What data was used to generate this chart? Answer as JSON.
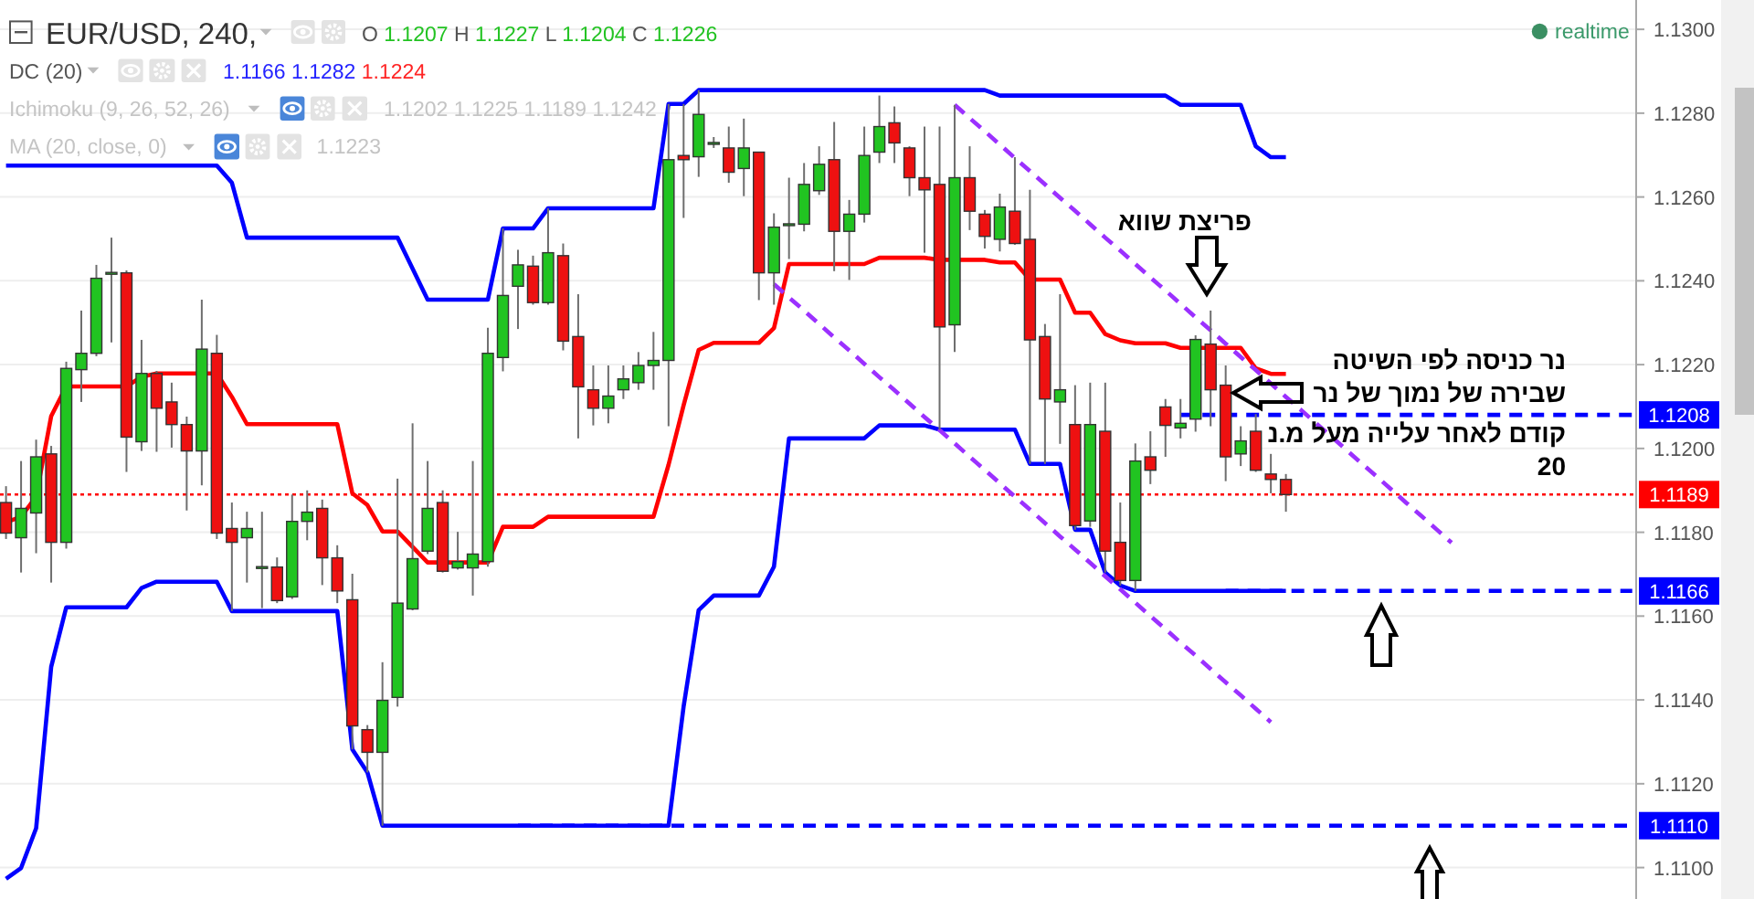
{
  "chart_data": {
    "type": "candlestick",
    "title": "EUR/USD, 240,",
    "annotations": [
      "O 1.1207 H 1.1227 L 1.1204 C 1.1226",
      "DC (20)",
      "1.1166 1.1282 1.1224",
      "Ichimoku (9, 26, 52, 26)",
      "1.1202 1.1225 1.1189 1.1242",
      "MA (20, close, 0)",
      "1.1223",
      "realtime",
      "פריצת שווא",
      "נר כניסה לפי השיטה\nשבירה של נמוך של נר\nקודם לאחר עלייה מעל מ.נ\n20"
    ],
    "categories": [
      null,
      null,
      null,
      null,
      null,
      null,
      null,
      null,
      null,
      null,
      null,
      null,
      null,
      null,
      null,
      null,
      null,
      null,
      null,
      null,
      null,
      null,
      null,
      null,
      null,
      null,
      null,
      null,
      null,
      null,
      null,
      null,
      null,
      null,
      null,
      null,
      null,
      null,
      null,
      null,
      null,
      null,
      null,
      null,
      null,
      null,
      null,
      null,
      null,
      null,
      null,
      null,
      null,
      null,
      null,
      null,
      null,
      null,
      null,
      null,
      null,
      null,
      null,
      null,
      null,
      null,
      null,
      null,
      null,
      null,
      null,
      null,
      null,
      null,
      null,
      null,
      null,
      null,
      null,
      null,
      null,
      null,
      null,
      null,
      null,
      null,
      null,
      null,
      null,
      null,
      null,
      null,
      null,
      null,
      null,
      null,
      null,
      null,
      null,
      null,
      null,
      null,
      null,
      null,
      null,
      null,
      null,
      null,
      null
    ],
    "ohlc": [
      [
        1.11871,
        1.1191,
        1.11784,
        1.11798
      ],
      [
        1.11787,
        1.1197,
        1.11704,
        1.11857
      ],
      [
        1.11846,
        1.12021,
        1.1175,
        1.1198
      ],
      [
        1.11987,
        1.12006,
        1.1168,
        1.11776
      ],
      [
        1.11776,
        1.12207,
        1.11761,
        1.12191
      ],
      [
        1.12188,
        1.12329,
        1.12111,
        1.12227
      ],
      [
        1.12227,
        1.12438,
        1.1222,
        1.12406
      ],
      [
        1.12418,
        1.12503,
        1.12253,
        1.1242
      ],
      [
        1.12419,
        1.12425,
        1.11944,
        1.12027
      ],
      [
        1.12016,
        1.12259,
        1.11994,
        1.12179
      ],
      [
        1.12179,
        1.12185,
        1.11992,
        1.12096
      ],
      [
        1.12111,
        1.12157,
        1.12002,
        1.12057
      ],
      [
        1.12057,
        1.12076,
        1.11852,
        1.11994
      ],
      [
        1.11994,
        1.12355,
        1.11912,
        1.12237
      ],
      [
        1.12227,
        1.12271,
        1.11784,
        1.11798
      ],
      [
        1.11809,
        1.11871,
        1.11612,
        1.11776
      ],
      [
        1.11787,
        1.11849,
        1.1168,
        1.11809
      ],
      [
        1.11716,
        1.11849,
        1.11619,
        1.11718
      ],
      [
        1.11717,
        1.1174,
        1.11631,
        1.11637
      ],
      [
        1.11646,
        1.1189,
        1.11641,
        1.11826
      ],
      [
        1.11826,
        1.119,
        1.11781,
        1.11848
      ],
      [
        1.11857,
        1.11878,
        1.11674,
        1.11739
      ],
      [
        1.11739,
        1.11769,
        1.11631,
        1.1166
      ],
      [
        1.11639,
        1.11701,
        1.11282,
        1.11338
      ],
      [
        1.11329,
        1.1134,
        1.11227,
        1.11275
      ],
      [
        1.11275,
        1.1149,
        1.111,
        1.11399
      ],
      [
        1.11406,
        1.11928,
        1.11384,
        1.11631
      ],
      [
        1.11617,
        1.1206,
        1.11614,
        1.11737
      ],
      [
        1.11755,
        1.1197,
        1.11748,
        1.11857
      ],
      [
        1.11871,
        1.119,
        1.11704,
        1.11707
      ],
      [
        1.11715,
        1.11801,
        1.11711,
        1.1173
      ],
      [
        1.11715,
        1.1197,
        1.11649,
        1.11748
      ],
      [
        1.1173,
        1.12288,
        1.11718,
        1.12227
      ],
      [
        1.12217,
        1.12525,
        1.12184,
        1.12365
      ],
      [
        1.12387,
        1.12474,
        1.12285,
        1.12438
      ],
      [
        1.12435,
        1.1246,
        1.12343,
        1.12348
      ],
      [
        1.12348,
        1.12573,
        1.12343,
        1.12467
      ],
      [
        1.1246,
        1.12489,
        1.12234,
        1.12256
      ],
      [
        1.12267,
        1.12368,
        1.12024,
        1.12147
      ],
      [
        1.1214,
        1.12198,
        1.12055,
        1.12096
      ],
      [
        1.12096,
        1.12198,
        1.1206,
        1.12125
      ],
      [
        1.1214,
        1.12198,
        1.12118,
        1.12166
      ],
      [
        1.12157,
        1.1223,
        1.1214,
        1.12198
      ],
      [
        1.12198,
        1.12278,
        1.1214,
        1.1221
      ],
      [
        1.1221,
        1.12822,
        1.12053,
        1.12689
      ],
      [
        1.12699,
        1.12822,
        1.1255,
        1.12689
      ],
      [
        1.12696,
        1.12855,
        1.12648,
        1.12797
      ],
      [
        1.12727,
        1.12743,
        1.12717,
        1.1273
      ],
      [
        1.12717,
        1.12768,
        1.12634,
        1.12659
      ],
      [
        1.12668,
        1.12787,
        1.12602,
        1.12717
      ],
      [
        1.12707,
        1.12708,
        1.12354,
        1.12419
      ],
      [
        1.12419,
        1.12561,
        1.12343,
        1.12528
      ],
      [
        1.12534,
        1.12646,
        1.12452,
        1.12536
      ],
      [
        1.12535,
        1.12681,
        1.12518,
        1.1263
      ],
      [
        1.12615,
        1.12721,
        1.12605,
        1.12678
      ],
      [
        1.12689,
        1.12779,
        1.12423,
        1.12518
      ],
      [
        1.12518,
        1.12593,
        1.12402,
        1.12559
      ],
      [
        1.12559,
        1.12768,
        1.12539,
        1.12699
      ],
      [
        1.12707,
        1.12842,
        1.12681,
        1.12768
      ],
      [
        1.12777,
        1.12816,
        1.12681,
        1.12729
      ],
      [
        1.12717,
        1.12721,
        1.12602,
        1.12646
      ],
      [
        1.12646,
        1.12768,
        1.12467,
        1.12617
      ],
      [
        1.1263,
        1.12768,
        1.12045,
        1.1229
      ],
      [
        1.12295,
        1.1282,
        1.1223,
        1.12646
      ],
      [
        1.12646,
        1.12721,
        1.12521,
        1.12566
      ],
      [
        1.12559,
        1.12569,
        1.12477,
        1.12506
      ],
      [
        1.12499,
        1.12608,
        1.1247,
        1.12576
      ],
      [
        1.12566,
        1.12695,
        1.12486,
        1.12489
      ],
      [
        1.12499,
        1.12617,
        1.11963,
        1.12259
      ],
      [
        1.12267,
        1.12297,
        1.11963,
        1.12118
      ],
      [
        1.12111,
        1.12368,
        1.12011,
        1.1214
      ],
      [
        1.12057,
        1.12151,
        1.11806,
        1.11816
      ],
      [
        1.11827,
        1.12157,
        1.11813,
        1.12057
      ],
      [
        1.12041,
        1.12157,
        1.11704,
        1.11755
      ],
      [
        1.11776,
        1.11871,
        1.11673,
        1.11685
      ],
      [
        1.11685,
        1.12012,
        1.1166,
        1.1197
      ],
      [
        1.1198,
        1.12041,
        1.11915,
        1.11948
      ],
      [
        1.12099,
        1.12118,
        1.1198,
        1.12055
      ],
      [
        1.12049,
        1.12118,
        1.12024,
        1.1206
      ],
      [
        1.1207,
        1.1227,
        1.1204,
        1.1226
      ],
      [
        1.12249,
        1.12329,
        1.12053,
        1.1214
      ],
      [
        1.12151,
        1.12198,
        1.11922,
        1.1198
      ],
      [
        1.11987,
        1.12053,
        1.11958,
        1.12018
      ],
      [
        1.12041,
        1.12082,
        1.11944,
        1.11948
      ],
      [
        1.11939,
        1.11987,
        1.11893,
        1.11926
      ],
      [
        1.11926,
        1.11939,
        1.11849,
        1.1189
      ],
      null,
      null,
      null,
      null,
      null,
      null,
      null,
      null,
      null,
      null,
      null,
      null,
      null,
      null,
      null,
      null,
      null,
      null,
      null,
      null,
      null,
      null,
      null
    ],
    "colors": [
      "#ee1111",
      "#21c421",
      "#21c421",
      "#ee1111",
      "#21c421",
      "#21c421",
      "#21c421",
      "#21c421",
      "#ee1111",
      "#21c421",
      "#ee1111",
      "#ee1111",
      "#ee1111",
      "#21c421",
      "#ee1111",
      "#ee1111",
      "#21c421",
      "#21c421",
      "#ee1111",
      "#21c421",
      "#21c421",
      "#ee1111",
      "#ee1111",
      "#ee1111",
      "#ee1111",
      "#21c421",
      "#21c421",
      "#21c421",
      "#21c421",
      "#ee1111",
      "#21c421",
      "#21c421",
      "#21c421",
      "#21c421",
      "#21c421",
      "#ee1111",
      "#21c421",
      "#ee1111",
      "#ee1111",
      "#ee1111",
      "#21c421",
      "#21c421",
      "#21c421",
      "#21c421",
      "#21c421",
      "#ee1111",
      "#21c421",
      "#21c421",
      "#ee1111",
      "#21c421",
      "#ee1111",
      "#21c421",
      "#21c421",
      "#21c421",
      "#21c421",
      "#ee1111",
      "#21c421",
      "#21c421",
      "#21c421",
      "#ee1111",
      "#ee1111",
      "#ee1111",
      "#ee1111",
      "#21c421",
      "#ee1111",
      "#ee1111",
      "#21c421",
      "#ee1111",
      "#ee1111",
      "#ee1111",
      "#21c421",
      "#ee1111",
      "#21c421",
      "#ee1111",
      "#ee1111",
      "#21c421",
      "#ee1111",
      "#ee1111",
      "#21c421",
      "#21c421",
      "#ee1111",
      "#ee1111",
      "#21c421",
      "#ee1111",
      "#ee1111",
      "#ee1111",
      null,
      null,
      null,
      null,
      null,
      null,
      null,
      null,
      null,
      null,
      null,
      null,
      null,
      null,
      null,
      null,
      null,
      null,
      null,
      null,
      null,
      null,
      null
    ],
    "series": [
      {
        "type": "line",
        "color": "#0000ff",
        "values": [
          1.12675,
          1.12675,
          1.12675,
          1.12675,
          1.12675,
          1.12675,
          1.12675,
          1.12675,
          1.12675,
          1.12675,
          1.12675,
          1.12675,
          1.12675,
          1.12675,
          1.12675,
          1.12634,
          1.12503,
          1.12503,
          1.12503,
          1.12503,
          1.12503,
          1.12503,
          1.12503,
          1.12503,
          1.12503,
          1.12503,
          1.12503,
          1.12429,
          1.12355,
          1.12355,
          1.12355,
          1.12355,
          1.12355,
          1.12525,
          1.12525,
          1.12525,
          1.12573,
          1.12573,
          1.12573,
          1.12573,
          1.12573,
          1.12573,
          1.12573,
          1.12573,
          1.12822,
          1.12822,
          1.12855,
          1.12855,
          1.12855,
          1.12855,
          1.12855,
          1.12855,
          1.12855,
          1.12855,
          1.12855,
          1.12855,
          1.12855,
          1.12855,
          1.12855,
          1.12855,
          1.12855,
          1.12855,
          1.12855,
          1.12855,
          1.12855,
          1.12855,
          1.12842,
          1.12842,
          1.12842,
          1.12842,
          1.12842,
          1.12842,
          1.12842,
          1.12842,
          1.12842,
          1.12842,
          1.12842,
          1.12842,
          1.1282,
          1.1282,
          1.1282,
          1.1282,
          1.1282,
          1.12721,
          1.12695,
          1.12695,
          null,
          null,
          null,
          null,
          null,
          null,
          null,
          null,
          null,
          null,
          null,
          null,
          null,
          null,
          null,
          null,
          null,
          null,
          null,
          null,
          null,
          null,
          null
        ]
      },
      {
        "type": "line",
        "color": "#ff0000",
        "values": [
          1.11824,
          1.11837,
          1.11885,
          1.12077,
          1.12148,
          1.12148,
          1.12148,
          1.12148,
          1.12148,
          1.12171,
          1.12179,
          1.12179,
          1.12179,
          1.12179,
          1.12179,
          1.12123,
          1.12058,
          1.12058,
          1.12058,
          1.12058,
          1.12058,
          1.12058,
          1.12058,
          1.11893,
          1.11865,
          1.11802,
          1.11802,
          1.11765,
          1.11728,
          1.11728,
          1.11728,
          1.11728,
          1.11728,
          1.11813,
          1.11813,
          1.11813,
          1.11837,
          1.11837,
          1.11837,
          1.11837,
          1.11837,
          1.11837,
          1.11837,
          1.11837,
          1.11961,
          1.12103,
          1.12235,
          1.12252,
          1.12252,
          1.12252,
          1.12252,
          1.12287,
          1.1244,
          1.1244,
          1.1244,
          1.1244,
          1.1244,
          1.1244,
          1.12455,
          1.12455,
          1.12455,
          1.12455,
          1.1245,
          1.1245,
          1.1245,
          1.1245,
          1.12444,
          1.12444,
          1.12403,
          1.12403,
          1.12403,
          1.12324,
          1.12324,
          1.12273,
          1.12258,
          1.12251,
          1.12251,
          1.12251,
          1.1224,
          1.1224,
          1.1224,
          1.1224,
          1.1224,
          1.12191,
          1.12178,
          1.12178,
          null,
          null,
          null,
          null,
          null,
          null,
          null,
          null,
          null,
          null,
          null,
          null,
          null,
          null,
          null,
          null,
          null,
          null,
          null,
          null,
          null,
          null,
          null
        ]
      },
      {
        "type": "line",
        "color": "#0000ff",
        "values": [
          1.10973,
          1.10999,
          1.11094,
          1.11479,
          1.11621,
          1.11621,
          1.11621,
          1.11621,
          1.11621,
          1.11667,
          1.11682,
          1.11682,
          1.11682,
          1.11682,
          1.11682,
          1.11612,
          1.11612,
          1.11612,
          1.11612,
          1.11612,
          1.11612,
          1.11612,
          1.11612,
          1.11282,
          1.11227,
          1.111,
          1.111,
          1.111,
          1.111,
          1.111,
          1.111,
          1.111,
          1.111,
          1.111,
          1.111,
          1.111,
          1.111,
          1.111,
          1.111,
          1.111,
          1.111,
          1.111,
          1.111,
          1.111,
          1.111,
          1.11384,
          1.11614,
          1.11649,
          1.11649,
          1.11649,
          1.11649,
          1.11718,
          1.12024,
          1.12024,
          1.12024,
          1.12024,
          1.12024,
          1.12024,
          1.12055,
          1.12055,
          1.12055,
          1.12055,
          1.12045,
          1.12045,
          1.12045,
          1.12045,
          1.12045,
          1.12045,
          1.11963,
          1.11963,
          1.11963,
          1.11806,
          1.11806,
          1.11704,
          1.11673,
          1.1166,
          1.1166,
          1.1166,
          1.1166,
          1.1166,
          1.1166,
          1.1166,
          1.1166,
          1.1166,
          1.1166,
          1.1166,
          null,
          null,
          null,
          null,
          null,
          null,
          null,
          null,
          null,
          null,
          null,
          null,
          null,
          null,
          null,
          null,
          null,
          null,
          null,
          null,
          null,
          null,
          null
        ]
      },
      {
        "type": "line",
        "color": "#9b30ff",
        "line_style": "dashed",
        "values": [
          null,
          null,
          null,
          null,
          null,
          null,
          null,
          null,
          null,
          null,
          null,
          null,
          null,
          null,
          null,
          null,
          null,
          null,
          null,
          null,
          null,
          null,
          null,
          null,
          null,
          null,
          null,
          null,
          null,
          null,
          null,
          null,
          null,
          null,
          null,
          null,
          null,
          null,
          null,
          null,
          null,
          null,
          null,
          null,
          null,
          null,
          null,
          null,
          null,
          null,
          null,
          null,
          null,
          null,
          null,
          null,
          null,
          null,
          null,
          null,
          null,
          null,
          null,
          1.1282,
          1.12788,
          1.12757,
          1.12725,
          1.12693,
          1.12662,
          1.1263,
          1.12598,
          1.12567,
          1.12535,
          1.12503,
          1.12472,
          1.1244,
          1.12408,
          1.12377,
          1.12345,
          1.12313,
          1.12282,
          1.1225,
          1.12218,
          1.12187,
          1.12155,
          1.12123,
          1.12092,
          1.1206,
          1.12029,
          1.11997,
          1.11965,
          1.11934,
          1.11902,
          1.1187,
          1.11839,
          1.11807,
          1.11775,
          null,
          null,
          null,
          null,
          null,
          null,
          null,
          null,
          null,
          null,
          null,
          null
        ]
      },
      {
        "type": "line",
        "color": "#9b30ff",
        "line_style": "dashed",
        "values": [
          null,
          null,
          null,
          null,
          null,
          null,
          null,
          null,
          null,
          null,
          null,
          null,
          null,
          null,
          null,
          null,
          null,
          null,
          null,
          null,
          null,
          null,
          null,
          null,
          null,
          null,
          null,
          null,
          null,
          null,
          null,
          null,
          null,
          null,
          null,
          null,
          null,
          null,
          null,
          null,
          null,
          null,
          null,
          null,
          null,
          null,
          null,
          null,
          null,
          null,
          null,
          1.12392,
          1.1236,
          1.12329,
          1.12297,
          1.12265,
          1.12234,
          1.12202,
          1.1217,
          1.12139,
          1.12107,
          1.12075,
          1.12044,
          1.12012,
          1.1198,
          1.11949,
          1.11917,
          1.11885,
          1.11854,
          1.11822,
          1.1179,
          1.11759,
          1.11727,
          1.11695,
          1.11664,
          1.11632,
          1.116,
          1.11569,
          1.11537,
          1.11506,
          1.11474,
          1.11442,
          1.11411,
          1.11379,
          1.11347,
          null,
          null,
          null,
          null,
          null,
          null,
          null,
          null,
          null,
          null,
          null,
          null,
          null,
          null,
          null,
          null,
          null,
          null,
          null,
          null,
          null,
          null,
          null,
          null
        ]
      },
      {
        "type": "line",
        "color": "#0000ff",
        "line_style": "dashed",
        "values": [
          null,
          null,
          null,
          null,
          null,
          null,
          null,
          null,
          null,
          null,
          null,
          null,
          null,
          null,
          null,
          null,
          null,
          null,
          null,
          null,
          null,
          null,
          null,
          null,
          null,
          null,
          null,
          null,
          null,
          null,
          null,
          null,
          null,
          null,
          null,
          null,
          null,
          null,
          null,
          null,
          null,
          null,
          null,
          null,
          null,
          null,
          null,
          null,
          null,
          null,
          null,
          null,
          null,
          null,
          null,
          null,
          null,
          null,
          null,
          null,
          null,
          null,
          null,
          null,
          null,
          null,
          null,
          null,
          null,
          null,
          null,
          null,
          null,
          null,
          null,
          null,
          null,
          null,
          1.1208,
          1.1208,
          1.1208,
          1.1208,
          1.1208,
          1.1208,
          1.1208,
          1.1208,
          1.1208,
          1.1208,
          1.1208,
          1.1208,
          1.1208,
          1.1208,
          1.1208,
          1.1208,
          1.1208,
          1.1208,
          1.1208,
          1.1208,
          1.1208,
          1.1208,
          1.1208,
          1.1208,
          1.1208,
          1.1208,
          1.1208,
          1.1208,
          1.1208,
          1.1208,
          1.1208
        ],
        "value_labels": [
          null,
          null,
          null,
          null,
          null,
          null,
          null,
          null,
          null,
          null,
          null,
          null,
          null,
          null,
          null,
          null,
          null,
          null,
          null,
          null,
          null,
          null,
          null,
          null,
          null,
          null,
          null,
          null,
          null,
          null,
          null,
          null,
          null,
          null,
          null,
          null,
          null,
          null,
          null,
          null,
          null,
          null,
          null,
          null,
          null,
          null,
          null,
          null,
          null,
          null,
          null,
          null,
          null,
          null,
          null,
          null,
          null,
          null,
          null,
          null,
          null,
          null,
          null,
          null,
          null,
          null,
          null,
          null,
          null,
          null,
          null,
          null,
          null,
          null,
          null,
          null,
          null,
          null,
          null,
          null,
          null,
          null,
          null,
          null,
          null,
          null,
          null,
          null,
          null,
          null,
          null,
          null,
          null,
          null,
          null,
          null,
          null,
          null,
          null,
          null,
          null,
          null,
          null,
          null,
          null,
          null,
          null,
          null,
          "1.1208"
        ]
      },
      {
        "type": "line",
        "color": "#0000ff",
        "line_style": "dashed",
        "values": [
          null,
          null,
          null,
          null,
          null,
          null,
          null,
          null,
          null,
          null,
          null,
          null,
          null,
          null,
          null,
          null,
          null,
          null,
          null,
          null,
          null,
          null,
          null,
          null,
          null,
          null,
          null,
          null,
          null,
          null,
          null,
          null,
          null,
          null,
          null,
          null,
          null,
          null,
          null,
          null,
          null,
          null,
          null,
          null,
          null,
          null,
          null,
          null,
          null,
          null,
          null,
          null,
          null,
          null,
          null,
          null,
          null,
          null,
          null,
          null,
          null,
          null,
          null,
          null,
          null,
          null,
          null,
          null,
          null,
          null,
          null,
          null,
          null,
          null,
          null,
          null,
          null,
          null,
          null,
          null,
          null,
          1.1166,
          1.1166,
          1.1166,
          1.1166,
          1.1166,
          1.1166,
          1.1166,
          1.1166,
          1.1166,
          1.1166,
          1.1166,
          1.1166,
          1.1166,
          1.1166,
          1.1166,
          1.1166,
          1.1166,
          1.1166,
          1.1166,
          1.1166,
          1.1166,
          1.1166,
          1.1166,
          1.1166,
          1.1166,
          1.1166,
          1.1166,
          1.1166
        ],
        "value_labels": [
          null,
          null,
          null,
          null,
          null,
          null,
          null,
          null,
          null,
          null,
          null,
          null,
          null,
          null,
          null,
          null,
          null,
          null,
          null,
          null,
          null,
          null,
          null,
          null,
          null,
          null,
          null,
          null,
          null,
          null,
          null,
          null,
          null,
          null,
          null,
          null,
          null,
          null,
          null,
          null,
          null,
          null,
          null,
          null,
          null,
          null,
          null,
          null,
          null,
          null,
          null,
          null,
          null,
          null,
          null,
          null,
          null,
          null,
          null,
          null,
          null,
          null,
          null,
          null,
          null,
          null,
          null,
          null,
          null,
          null,
          null,
          null,
          null,
          null,
          null,
          null,
          null,
          null,
          null,
          null,
          null,
          null,
          null,
          null,
          null,
          null,
          null,
          null,
          null,
          null,
          null,
          null,
          null,
          null,
          null,
          null,
          null,
          null,
          null,
          null,
          null,
          null,
          null,
          null,
          null,
          null,
          null,
          null,
          "1.1166"
        ]
      },
      {
        "type": "line",
        "color": "#0000ff",
        "line_style": "dashed",
        "values": [
          null,
          null,
          null,
          null,
          null,
          null,
          null,
          null,
          null,
          null,
          null,
          null,
          null,
          null,
          null,
          null,
          null,
          null,
          null,
          null,
          null,
          null,
          null,
          null,
          null,
          null,
          null,
          null,
          null,
          null,
          null,
          null,
          null,
          null,
          1.111,
          1.111,
          1.111,
          1.111,
          1.111,
          1.111,
          1.111,
          1.111,
          1.111,
          1.111,
          1.111,
          1.111,
          1.111,
          1.111,
          1.111,
          1.111,
          1.111,
          1.111,
          1.111,
          1.111,
          1.111,
          1.111,
          1.111,
          1.111,
          1.111,
          1.111,
          1.111,
          1.111,
          1.111,
          1.111,
          1.111,
          1.111,
          1.111,
          1.111,
          1.111,
          1.111,
          1.111,
          1.111,
          1.111,
          1.111,
          1.111,
          1.111,
          1.111,
          1.111,
          1.111,
          1.111,
          1.111,
          1.111,
          1.111,
          1.111,
          1.111,
          1.111,
          1.111,
          1.111,
          1.111,
          1.111,
          1.111,
          1.111,
          1.111,
          1.111,
          1.111,
          1.111,
          1.111,
          1.111,
          1.111,
          1.111,
          1.111,
          1.111,
          1.111,
          1.111,
          1.111,
          1.111,
          1.111,
          1.111,
          1.111
        ],
        "value_labels": [
          null,
          null,
          null,
          null,
          null,
          null,
          null,
          null,
          null,
          null,
          null,
          null,
          null,
          null,
          null,
          null,
          null,
          null,
          null,
          null,
          null,
          null,
          null,
          null,
          null,
          null,
          null,
          null,
          null,
          null,
          null,
          null,
          null,
          null,
          null,
          null,
          null,
          null,
          null,
          null,
          null,
          null,
          null,
          null,
          null,
          null,
          null,
          null,
          null,
          null,
          null,
          null,
          null,
          null,
          null,
          null,
          null,
          null,
          null,
          null,
          null,
          null,
          null,
          null,
          null,
          null,
          null,
          null,
          null,
          null,
          null,
          null,
          null,
          null,
          null,
          null,
          null,
          null,
          null,
          null,
          null,
          null,
          null,
          null,
          null,
          null,
          null,
          null,
          null,
          null,
          null,
          null,
          null,
          null,
          null,
          null,
          null,
          null,
          null,
          null,
          null,
          null,
          null,
          null,
          null,
          null,
          null,
          null,
          "1.1110"
        ]
      }
    ],
    "ref_lines": [
      {
        "axis": "y",
        "value": 1.1189,
        "label": "1.1189",
        "color": "#ff0000",
        "line_style": "dotted"
      }
    ],
    "ylim": [
      1.10925,
      1.1307
    ],
    "yticks": [
      {
        "value": 1.11,
        "label": "1.1100"
      },
      {
        "value": 1.112,
        "label": "1.1120"
      },
      {
        "value": 1.114,
        "label": "1.1140"
      },
      {
        "value": 1.116,
        "label": "1.1160"
      },
      {
        "value": 1.118,
        "label": "1.1180"
      },
      {
        "value": 1.12,
        "label": "1.1200"
      },
      {
        "value": 1.122,
        "label": "1.1220"
      },
      {
        "value": 1.124,
        "label": "1.1240"
      },
      {
        "value": 1.126,
        "label": "1.1260"
      },
      {
        "value": 1.128,
        "label": "1.1280"
      },
      {
        "value": 1.13,
        "label": "1.1300"
      }
    ],
    "grid": "y",
    "tick_labels": "y"
  }
}
